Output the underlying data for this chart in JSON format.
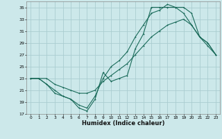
{
  "xlabel": "Humidex (Indice chaleur)",
  "bg_color": "#cce8ea",
  "grid_color": "#aacdd0",
  "line_color": "#1a6b5a",
  "xlim": [
    -0.5,
    23.5
  ],
  "ylim": [
    17,
    36
  ],
  "xticks": [
    0,
    1,
    2,
    3,
    4,
    5,
    6,
    7,
    8,
    9,
    10,
    11,
    12,
    13,
    14,
    15,
    16,
    17,
    18,
    19,
    20,
    21,
    22,
    23
  ],
  "yticks": [
    17,
    19,
    21,
    23,
    25,
    27,
    29,
    31,
    33,
    35
  ],
  "line1_x": [
    0,
    1,
    2,
    3,
    4,
    5,
    6,
    7,
    8,
    9,
    10,
    11,
    12,
    13,
    14,
    15,
    16,
    17,
    18,
    19,
    20,
    21,
    22,
    23
  ],
  "line1_y": [
    23,
    23,
    22,
    20.5,
    20,
    19.5,
    18,
    17.5,
    19.5,
    24,
    22.5,
    23,
    23.5,
    28,
    30.5,
    35,
    35,
    35,
    35,
    35,
    34,
    30,
    29,
    27
  ],
  "line2_x": [
    0,
    1,
    2,
    3,
    4,
    5,
    6,
    7,
    8,
    9,
    10,
    11,
    12,
    13,
    14,
    15,
    16,
    17,
    18,
    19,
    20,
    21,
    22,
    23
  ],
  "line2_y": [
    23,
    23,
    22,
    21,
    20,
    19.5,
    18.5,
    18,
    20,
    23,
    25,
    26,
    27.5,
    30,
    32,
    34,
    34.5,
    35.5,
    35,
    34,
    32,
    30,
    29,
    27
  ],
  "line3_x": [
    0,
    1,
    2,
    3,
    4,
    5,
    6,
    7,
    8,
    9,
    10,
    11,
    12,
    13,
    14,
    15,
    16,
    17,
    18,
    19,
    20,
    21,
    22,
    23
  ],
  "line3_y": [
    23,
    23,
    23,
    22,
    21.5,
    21,
    20.5,
    20.5,
    21,
    22.5,
    23.5,
    24.5,
    25.5,
    27,
    28.5,
    30,
    31,
    32,
    32.5,
    33,
    32,
    30,
    28.5,
    27
  ]
}
